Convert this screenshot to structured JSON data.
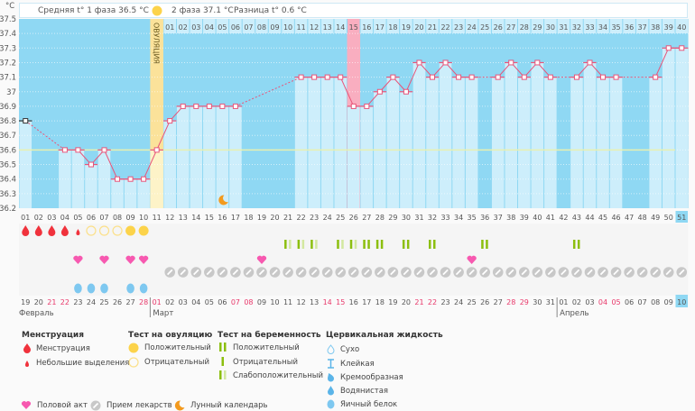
{
  "header": {
    "phase1_avg": "Средняя t° 1 фаза 36.5 °C",
    "phase2_avg": "2 фаза 37.1 °C",
    "difference": "Разница t° 0.6 °C",
    "sun_icon": "sun-icon"
  },
  "chart_data": {
    "type": "line",
    "ylabel": "°C",
    "ylim": [
      36.2,
      37.5
    ],
    "yticks": [
      "37.5",
      "37.4",
      "37.3",
      "37.2",
      "37.1",
      "37",
      "36.9",
      "36.8",
      "36.7",
      "36.6",
      "36.5",
      "36.4",
      "36.3",
      "36.2"
    ],
    "grid": true,
    "cover_line": 36.6,
    "ovulation_day": 11,
    "ovulation_label": "ОВУЛЯЦИЯ",
    "highlighted_day": 26,
    "current_day": 51,
    "cycle_days": [
      "01",
      "02",
      "03",
      "04",
      "05",
      "06",
      "07",
      "08",
      "09",
      "10",
      "11",
      "12",
      "13",
      "14",
      "15",
      "16",
      "17",
      "18",
      "19",
      "20",
      "21",
      "22",
      "23",
      "24",
      "25",
      "26",
      "27",
      "28",
      "29",
      "30",
      "31",
      "32",
      "33",
      "34",
      "35",
      "36",
      "37",
      "38",
      "39",
      "40",
      "41",
      "42",
      "43",
      "44",
      "45",
      "46",
      "47",
      "48",
      "49",
      "50",
      "51"
    ],
    "post_ovulation_days": [
      "01",
      "02",
      "03",
      "04",
      "05",
      "06",
      "07",
      "08",
      "09",
      "10",
      "11",
      "12",
      "13",
      "14",
      "15",
      "16",
      "17",
      "18",
      "19",
      "20",
      "21",
      "22",
      "23",
      "24",
      "25",
      "26",
      "27",
      "28",
      "29",
      "30",
      "31",
      "32",
      "33",
      "34",
      "35",
      "36",
      "37",
      "38",
      "39",
      "40"
    ],
    "temperatures": [
      36.8,
      null,
      null,
      36.6,
      36.6,
      36.5,
      36.6,
      36.4,
      36.4,
      36.4,
      36.6,
      36.8,
      36.9,
      36.9,
      36.9,
      36.9,
      36.9,
      null,
      null,
      null,
      null,
      37.1,
      37.1,
      37.1,
      37.1,
      36.9,
      36.9,
      37.0,
      37.1,
      37.0,
      37.2,
      37.1,
      37.2,
      37.1,
      37.1,
      null,
      37.1,
      37.2,
      37.1,
      37.2,
      37.1,
      null,
      37.1,
      37.2,
      37.1,
      37.1,
      null,
      null,
      37.1,
      37.3,
      37.3
    ]
  },
  "rows": {
    "menstruation": {
      "1": "full",
      "2": "full",
      "3": "full",
      "4": "full",
      "5": "spotting"
    },
    "ovulation_test": {
      "6": "negative",
      "7": "negative",
      "8": "negative",
      "9": "positive",
      "10": "positive"
    },
    "pregnancy_test": {
      "21": "weak",
      "22": "weak",
      "23": "weak",
      "25": "weak",
      "26": "weak",
      "27": "positive",
      "28": "positive",
      "30": "positive",
      "32": "positive",
      "36": "positive",
      "43": "positive"
    },
    "intercourse": [
      5,
      7,
      9,
      10,
      19,
      35
    ],
    "medication_from_day": 12,
    "medication_to_day": 51,
    "cervical_fluid": {
      "5": "egg-white",
      "6": "egg-white",
      "7": "egg-white",
      "9": "egg-white",
      "10": "egg-white"
    },
    "moon": [
      16
    ]
  },
  "dates": [
    {
      "d": "19",
      "we": false
    },
    {
      "d": "20",
      "we": false
    },
    {
      "d": "21",
      "we": true
    },
    {
      "d": "22",
      "we": true
    },
    {
      "d": "23",
      "we": false
    },
    {
      "d": "24",
      "we": false
    },
    {
      "d": "25",
      "we": false
    },
    {
      "d": "26",
      "we": false
    },
    {
      "d": "27",
      "we": false
    },
    {
      "d": "28",
      "we": true
    },
    {
      "d": "01",
      "we": true
    },
    {
      "d": "02",
      "we": false
    },
    {
      "d": "03",
      "we": false
    },
    {
      "d": "04",
      "we": false
    },
    {
      "d": "05",
      "we": false
    },
    {
      "d": "06",
      "we": false
    },
    {
      "d": "07",
      "we": true
    },
    {
      "d": "08",
      "we": true
    },
    {
      "d": "09",
      "we": false
    },
    {
      "d": "10",
      "we": false
    },
    {
      "d": "11",
      "we": false
    },
    {
      "d": "12",
      "we": false
    },
    {
      "d": "13",
      "we": false
    },
    {
      "d": "14",
      "we": true
    },
    {
      "d": "15",
      "we": true
    },
    {
      "d": "16",
      "we": false
    },
    {
      "d": "17",
      "we": false
    },
    {
      "d": "18",
      "we": false
    },
    {
      "d": "19",
      "we": false
    },
    {
      "d": "20",
      "we": false
    },
    {
      "d": "21",
      "we": true
    },
    {
      "d": "22",
      "we": true
    },
    {
      "d": "23",
      "we": false
    },
    {
      "d": "24",
      "we": false
    },
    {
      "d": "25",
      "we": false
    },
    {
      "d": "26",
      "we": false
    },
    {
      "d": "27",
      "we": false
    },
    {
      "d": "28",
      "we": true
    },
    {
      "d": "29",
      "we": true
    },
    {
      "d": "30",
      "we": false
    },
    {
      "d": "31",
      "we": false
    },
    {
      "d": "01",
      "we": false
    },
    {
      "d": "02",
      "we": false
    },
    {
      "d": "03",
      "we": false
    },
    {
      "d": "04",
      "we": true
    },
    {
      "d": "05",
      "we": true
    },
    {
      "d": "06",
      "we": false
    },
    {
      "d": "07",
      "we": false
    },
    {
      "d": "08",
      "we": false
    },
    {
      "d": "09",
      "we": false
    },
    {
      "d": "10",
      "we": false
    }
  ],
  "months": [
    {
      "label": "Февраль",
      "start_day": 1
    },
    {
      "label": "Март",
      "start_day": 11
    },
    {
      "label": "Апрель",
      "start_day": 42
    }
  ],
  "legend": {
    "menstruation": {
      "title": "Менструация",
      "items": [
        "Менструация",
        "Небольшие выделения"
      ]
    },
    "ovulation_test": {
      "title": "Тест на овуляцию",
      "items": [
        "Положительный",
        "Отрицательный"
      ]
    },
    "pregnancy_test": {
      "title": "Тест на беременность",
      "items": [
        "Положительный",
        "Отрицательный",
        "Слабоположительный"
      ]
    },
    "cervical_fluid": {
      "title": "Цервикальная жидкость",
      "items": [
        "Сухо",
        "Клейкая",
        "Кремообразная",
        "Водянистая",
        "Яичный белок"
      ]
    },
    "other": [
      "Половой акт",
      "Прием лекарств",
      "Лунный календарь"
    ]
  },
  "colors": {
    "background_dark": "#8fd8f3",
    "bar_light": "#cdeefb",
    "ovulation": "#fbe29a",
    "highlight": "#f9aec0",
    "line": "#e8557a",
    "cover_line": "#e8f0b0",
    "menstruation": "#f0323c",
    "ovulation_test": "#fcd34a",
    "pregnancy_dark": "#8cbf0f",
    "pregnancy_light": "#d3e8a0",
    "heart": "#f759b0",
    "pill": "#c8c8c8",
    "fluid": "#7ec8f0",
    "moon": "#f39a1e",
    "weekend": "#e8386a"
  }
}
